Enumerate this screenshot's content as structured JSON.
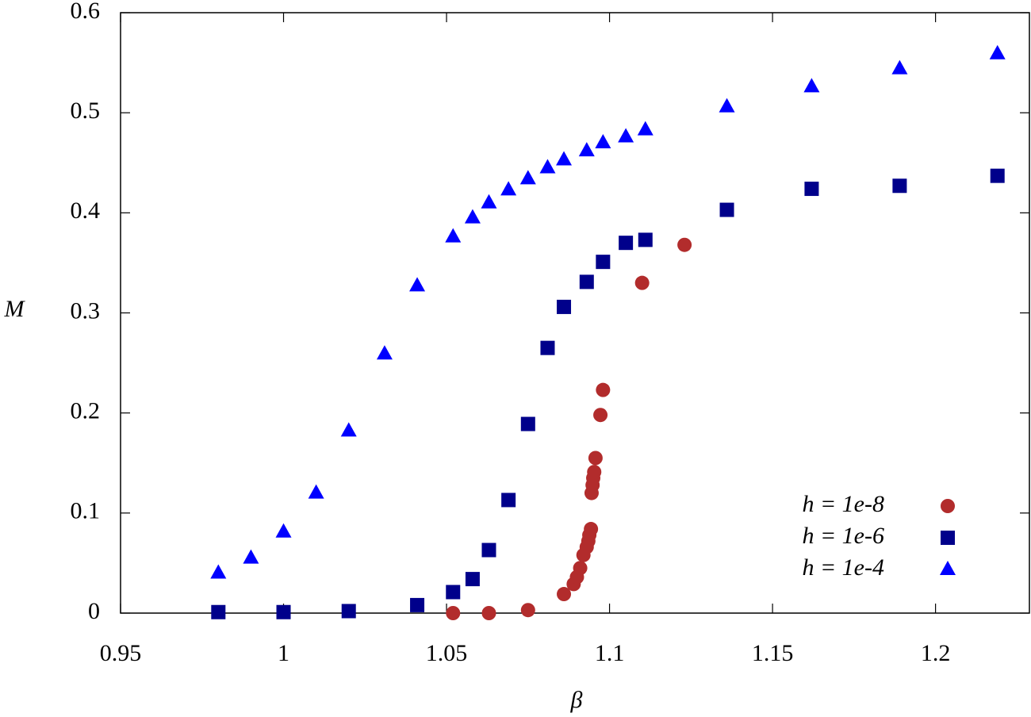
{
  "chart_data": {
    "type": "scatter",
    "x_label": "β",
    "y_label": "M",
    "xlim": [
      0.95,
      1.2288
    ],
    "ylim": [
      0,
      0.6
    ],
    "xticks": [
      0.95,
      1,
      1.05,
      1.1,
      1.15,
      1.2
    ],
    "yticks": [
      0,
      0.1,
      0.2,
      0.3,
      0.4,
      0.5,
      0.6
    ],
    "legend": "lower right",
    "series": [
      {
        "name": "h = 1e-8",
        "color": "#b22c2c",
        "marker": "circle",
        "x": [
          1.052,
          1.063,
          1.075,
          1.086,
          1.089,
          1.09,
          1.091,
          1.092,
          1.093,
          1.0935,
          1.0938,
          1.0943,
          1.0945,
          1.0948,
          1.095,
          1.0953,
          1.0957,
          1.0972,
          1.098,
          1.11,
          1.123
        ],
        "values": [
          0.0,
          0.0,
          0.003,
          0.019,
          0.029,
          0.036,
          0.045,
          0.058,
          0.066,
          0.072,
          0.078,
          0.084,
          0.12,
          0.128,
          0.135,
          0.141,
          0.155,
          0.198,
          0.223,
          0.33,
          0.368
        ]
      },
      {
        "name": "h = 1e-6",
        "color": "#00008b",
        "marker": "square",
        "x": [
          0.98,
          1.0,
          1.02,
          1.041,
          1.052,
          1.058,
          1.063,
          1.069,
          1.075,
          1.081,
          1.086,
          1.093,
          1.098,
          1.105,
          1.111,
          1.136,
          1.162,
          1.189,
          1.219
        ],
        "values": [
          0.001,
          0.001,
          0.002,
          0.008,
          0.021,
          0.034,
          0.063,
          0.113,
          0.189,
          0.265,
          0.306,
          0.331,
          0.351,
          0.37,
          0.373,
          0.403,
          0.424,
          0.427,
          0.437
        ]
      },
      {
        "name": "h = 1e-4",
        "color": "#0000ff",
        "marker": "triangle",
        "x": [
          0.98,
          0.99,
          1.0,
          1.01,
          1.02,
          1.031,
          1.041,
          1.052,
          1.058,
          1.063,
          1.069,
          1.075,
          1.081,
          1.086,
          1.093,
          1.098,
          1.105,
          1.111,
          1.136,
          1.162,
          1.189,
          1.219
        ],
        "values": [
          0.04,
          0.055,
          0.081,
          0.12,
          0.182,
          0.259,
          0.327,
          0.376,
          0.395,
          0.41,
          0.423,
          0.434,
          0.445,
          0.453,
          0.462,
          0.47,
          0.476,
          0.483,
          0.506,
          0.526,
          0.544,
          0.559
        ]
      }
    ]
  }
}
